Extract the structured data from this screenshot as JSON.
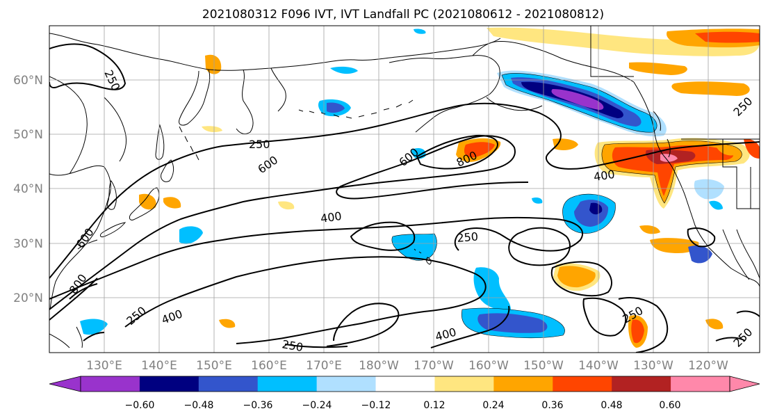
{
  "title": "2021080312 F096 IVT, IVT Landfall PC (2021080612 - 2021080812)",
  "lat_labels": [
    "60°N",
    "50°N",
    "40°N",
    "30°N",
    "20°N"
  ],
  "lon_labels": [
    "130°E",
    "140°E",
    "150°E",
    "160°E",
    "170°E",
    "180°W",
    "170°W",
    "160°W",
    "150°W",
    "140°W",
    "130°W",
    "120°W"
  ],
  "colorbar": {
    "colors": [
      "#9933cc",
      "#000080",
      "#3355cc",
      "#00bfff",
      "#b0e0ff",
      "#ffffff",
      "#ffe680",
      "#ffa500",
      "#ff4500",
      "#b22222",
      "#ff88aa"
    ],
    "ticks": [
      "−0.60",
      "−0.48",
      "−0.36",
      "−0.24",
      "−0.12",
      "0.12",
      "0.24",
      "0.36",
      "0.48",
      "0.60"
    ]
  },
  "contour_labels": [
    "250",
    "250",
    "600",
    "600",
    "800",
    "400",
    "400",
    "250",
    "400",
    "250",
    "250",
    "600",
    "800",
    "400",
    "250",
    "250",
    "250"
  ]
}
